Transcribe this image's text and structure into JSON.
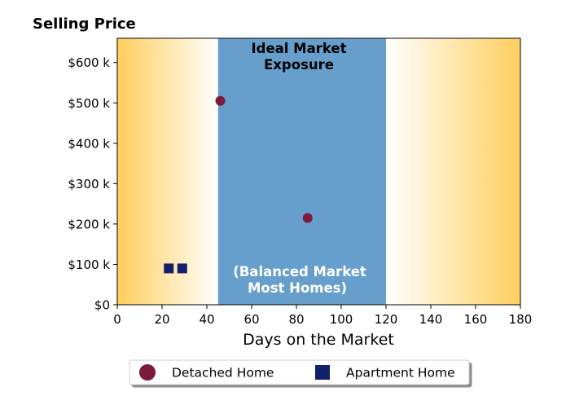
{
  "chart_data": {
    "type": "scatter",
    "title": "Selling Price",
    "xlabel": "Days on the Market",
    "ylabel": "",
    "xlim": [
      0,
      180
    ],
    "ylim": [
      0,
      660000
    ],
    "x_ticks": [
      0,
      20,
      40,
      60,
      80,
      100,
      120,
      140,
      160,
      180
    ],
    "x_tick_labels": [
      "0",
      "20",
      "40",
      "60",
      "80",
      "100",
      "120",
      "140",
      "160",
      "180"
    ],
    "y_ticks": [
      0,
      100000,
      200000,
      300000,
      400000,
      500000,
      600000
    ],
    "y_tick_labels": [
      "$0",
      "$100 k",
      "$200 k",
      "$300 k",
      "$400 k",
      "$500 k",
      "$600 k"
    ],
    "grid": false,
    "legend_position": "bottom-center",
    "series": [
      {
        "name": "Detached Home",
        "marker": "circle",
        "color": "#7b1a3a",
        "points": [
          {
            "x": 46,
            "y": 505000
          },
          {
            "x": 85,
            "y": 215000
          }
        ]
      },
      {
        "name": "Apartment Home",
        "marker": "square",
        "color": "#13206b",
        "points": [
          {
            "x": 23,
            "y": 90000
          },
          {
            "x": 29,
            "y": 90000
          }
        ]
      }
    ],
    "regions": [
      {
        "x_range": [
          45,
          120
        ],
        "color": "#679fcc",
        "role": "balanced-market"
      }
    ],
    "background_gradient": {
      "edge_color": "#ffcf5c",
      "center_color": "#ffffff"
    },
    "annotations": {
      "top_line1": "Ideal Market",
      "top_line2": "Exposure",
      "bottom_line1": "(Balanced Market",
      "bottom_line2": "Most Homes)"
    }
  }
}
